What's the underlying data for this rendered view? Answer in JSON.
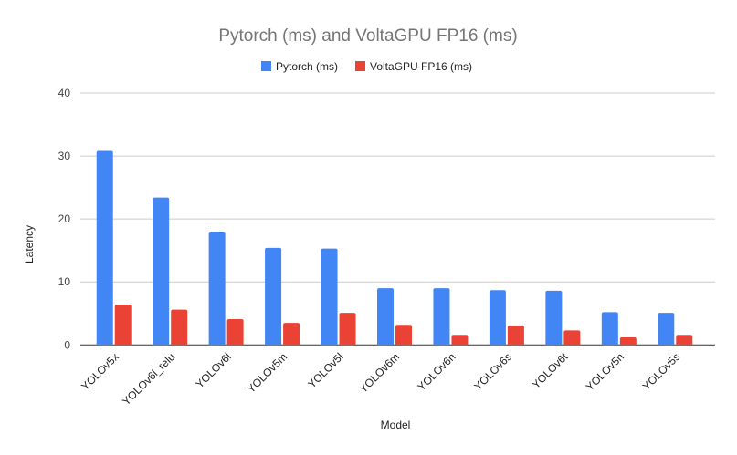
{
  "chart_data": {
    "type": "bar",
    "title": "Pytorch (ms) and VoltaGPU FP16 (ms)",
    "xlabel": "Model",
    "ylabel": "Latency",
    "ylim": [
      0,
      40
    ],
    "yticks": [
      0,
      10,
      20,
      30,
      40
    ],
    "grid": true,
    "legend_position": "top",
    "categories": [
      "YOLOv5x",
      "YOLOv6l_relu",
      "YOLOv6l",
      "YOLOv5m",
      "YOLOv5l",
      "YOLOv6m",
      "YOLOv6n",
      "YOLOv6s",
      "YOLOv6t",
      "YOLOv5n",
      "YOLOv5s"
    ],
    "series": [
      {
        "name": "Pytorch (ms)",
        "color": "#4285f4",
        "values": [
          30.8,
          23.4,
          18.0,
          15.4,
          15.3,
          9.0,
          9.0,
          8.7,
          8.6,
          5.2,
          5.1
        ]
      },
      {
        "name": "VoltaGPU FP16 (ms)",
        "color": "#ea4335",
        "values": [
          6.4,
          5.6,
          4.1,
          3.5,
          5.1,
          3.2,
          1.6,
          3.1,
          2.3,
          1.2,
          1.6
        ]
      }
    ]
  }
}
